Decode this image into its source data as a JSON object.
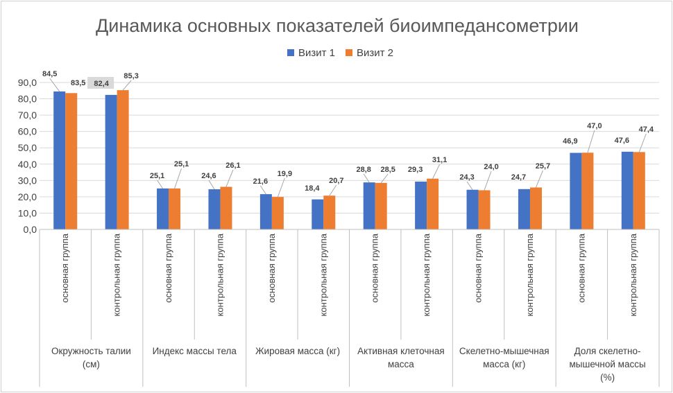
{
  "chart_data": {
    "type": "bar",
    "title": "Динамика основных показателей биоимпедансометрии",
    "ylim": [
      0,
      90
    ],
    "y_ticks": [
      "0,0",
      "10,0",
      "20,0",
      "30,0",
      "40,0",
      "50,0",
      "60,0",
      "70,0",
      "80,0",
      "90,0"
    ],
    "grid": true,
    "legend_position": "top",
    "groups": [
      {
        "label": [
          "Окружность талии",
          "(см)"
        ]
      },
      {
        "label": [
          "Индекс массы тела"
        ]
      },
      {
        "label": [
          "Жировая масса (кг)"
        ]
      },
      {
        "label": [
          "Активная клеточная",
          "масса"
        ]
      },
      {
        "label": [
          "Скелетно-мышечная",
          "масса (кг)"
        ]
      },
      {
        "label": [
          "Доля скелетно-",
          "мышечной массы",
          "(%)"
        ]
      }
    ],
    "categories": [
      "основная группа",
      "контрольная группа",
      "основная группа",
      "контрольная группа",
      "основная группа",
      "контрольная группа",
      "основная группа",
      "контрольная группа",
      "основная группа",
      "контрольная группа",
      "основная группа",
      "контрольная группа"
    ],
    "series": [
      {
        "name": "Визит 1",
        "color": "#4472C4",
        "values": [
          84.5,
          82.4,
          25.1,
          24.6,
          21.6,
          18.4,
          28.8,
          29.3,
          24.3,
          24.7,
          46.9,
          47.6
        ],
        "labels": [
          "84,5",
          "82,4",
          "25,1",
          "24,6",
          "21,6",
          "18,4",
          "28,8",
          "29,3",
          "24,3",
          "24,7",
          "46,9",
          "47,6"
        ]
      },
      {
        "name": "Визит 2",
        "color": "#ED7D31",
        "values": [
          83.5,
          85.3,
          25.1,
          26.1,
          19.9,
          20.7,
          28.5,
          31.1,
          24.0,
          25.7,
          47.0,
          47.4
        ],
        "labels": [
          "83,5",
          "85,3",
          "25,1",
          "26,1",
          "19,9",
          "20,7",
          "28,5",
          "31,1",
          "24,0",
          "25,7",
          "47,0",
          "47,4"
        ]
      }
    ]
  }
}
